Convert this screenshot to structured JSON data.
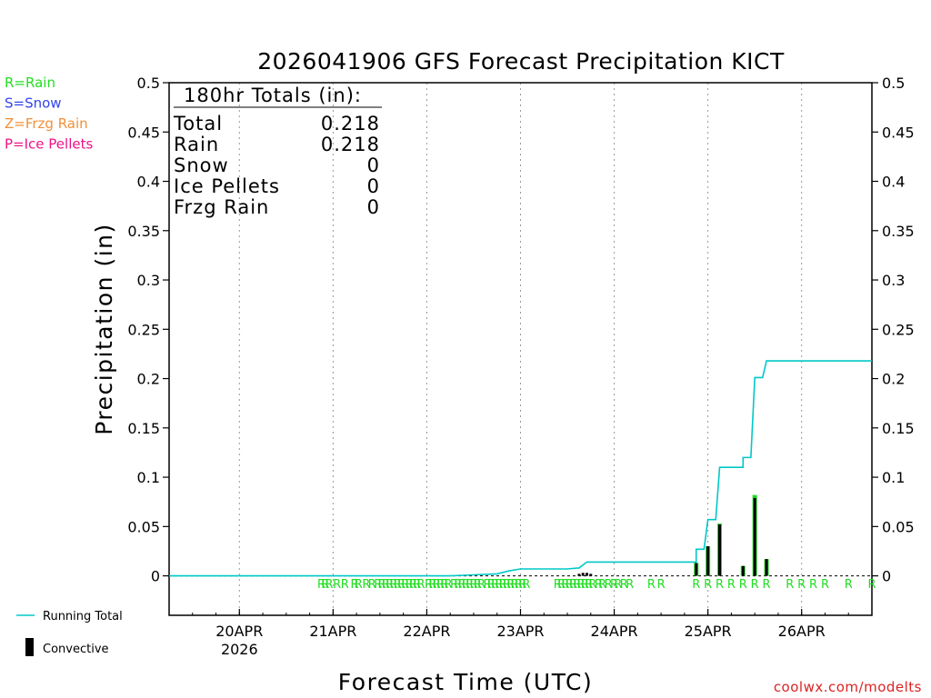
{
  "chart_data": {
    "type": "bar",
    "title": "2026041906 GFS Forecast Precipitation KICT",
    "xlabel": "Forecast Time (UTC)",
    "ylabel": "Precipitation (in)",
    "ylim": [
      -0.04,
      0.5
    ],
    "yticks": [
      0,
      0.05,
      0.1,
      0.15,
      0.2,
      0.25,
      0.3,
      0.35,
      0.4,
      0.45,
      0.5
    ],
    "ytick_labels": [
      "0",
      "0.05",
      "0.1",
      "0.15",
      "0.2",
      "0.25",
      "0.3",
      "0.35",
      "0.4",
      "0.45",
      "0.5"
    ],
    "x_unit": "hours since 2026-04-19 06 UTC",
    "xlim": [
      0,
      180
    ],
    "date_ticks": [
      {
        "x": 18,
        "label": "20APR",
        "sub": "2026"
      },
      {
        "x": 42,
        "label": "21APR",
        "sub": ""
      },
      {
        "x": 66,
        "label": "22APR",
        "sub": ""
      },
      {
        "x": 90,
        "label": "23APR",
        "sub": ""
      },
      {
        "x": 114,
        "label": "24APR",
        "sub": ""
      },
      {
        "x": 138,
        "label": "25APR",
        "sub": ""
      },
      {
        "x": 162,
        "label": "26APR",
        "sub": ""
      }
    ],
    "series": [
      {
        "name": "Running Total",
        "color": "#00c8c8",
        "points": [
          [
            0,
            0
          ],
          [
            72,
            0
          ],
          [
            78,
            0.001
          ],
          [
            84,
            0.002
          ],
          [
            87,
            0.005
          ],
          [
            90,
            0.007
          ],
          [
            102,
            0.007
          ],
          [
            105,
            0.008
          ],
          [
            107,
            0.014
          ],
          [
            111,
            0.014
          ],
          [
            135,
            0.014
          ],
          [
            135,
            0.027
          ],
          [
            137,
            0.027
          ],
          [
            138,
            0.057
          ],
          [
            140,
            0.057
          ],
          [
            141,
            0.11
          ],
          [
            147,
            0.11
          ],
          [
            147,
            0.12
          ],
          [
            149,
            0.12
          ],
          [
            150,
            0.201
          ],
          [
            152,
            0.201
          ],
          [
            153,
            0.218
          ],
          [
            180,
            0.218
          ]
        ]
      },
      {
        "name": "Convective",
        "color": "#000000",
        "bars": [
          [
            105,
            0.002
          ],
          [
            106,
            0.003
          ],
          [
            107,
            0.003
          ],
          [
            108,
            0.002
          ],
          [
            135,
            0.013
          ],
          [
            138,
            0.03
          ],
          [
            141,
            0.052
          ],
          [
            147,
            0.01
          ],
          [
            150,
            0.079
          ],
          [
            153,
            0.017
          ]
        ]
      },
      {
        "name": "Rain",
        "color": "#22dd22",
        "bars": [
          [
            135,
            0.013
          ],
          [
            138,
            0.03
          ],
          [
            141,
            0.053
          ],
          [
            147,
            0.01
          ],
          [
            150,
            0.082
          ],
          [
            153,
            0.017
          ]
        ]
      }
    ],
    "precip_type_marker": "R",
    "rain_markers_x": [
      39,
      40,
      41,
      43,
      45,
      47.5,
      48.5,
      50.5,
      52,
      53.5,
      54.5,
      55.5,
      56.5,
      57.5,
      58.5,
      59.5,
      60.5,
      61.5,
      62.5,
      63.5,
      64.5,
      66.5,
      67.5,
      68.5,
      69.5,
      70.5,
      71.5,
      73,
      74,
      75,
      76,
      77,
      78,
      79,
      80,
      81.5,
      82.5,
      83.5,
      84.5,
      85.5,
      86.5,
      87.5,
      88.5,
      89.5,
      90.5,
      91.5,
      99.5,
      100.5,
      101.5,
      102.5,
      103.5,
      104.5,
      105.5,
      106.5,
      107.5,
      108.5,
      110,
      111,
      112.5,
      114,
      115,
      116.5,
      118,
      123.5,
      126,
      135,
      138,
      141,
      144,
      147,
      150,
      153,
      159,
      162,
      165,
      168,
      174,
      180
    ],
    "legend": {
      "precip_types": [
        {
          "label": "R=Rain",
          "color": "#22dd22"
        },
        {
          "label": "S=Snow",
          "color": "#3344ee"
        },
        {
          "label": "Z=Frzg Rain",
          "color": "#f0903a"
        },
        {
          "label": "P=Ice Pellets",
          "color": "#ee1188"
        }
      ],
      "running_total_label": "Running Total",
      "convective_label": "Convective"
    },
    "totals_box": {
      "header": "180hr Totals (in):",
      "rows": [
        {
          "label": "Total",
          "value": "0.218"
        },
        {
          "label": "Rain",
          "value": "0.218"
        },
        {
          "label": "Snow",
          "value": "0"
        },
        {
          "label": "Ice Pellets",
          "value": "0"
        },
        {
          "label": "Frzg Rain",
          "value": "0"
        }
      ]
    },
    "credit": "coolwx.com/modelts"
  }
}
